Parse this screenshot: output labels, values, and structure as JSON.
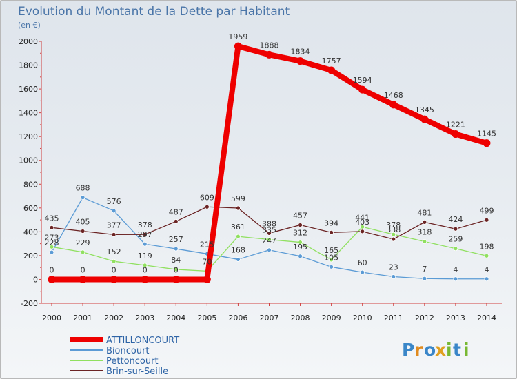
{
  "chart_data": {
    "type": "line",
    "title": "Evolution du Montant de la Dette par Habitant",
    "subtitle": "(en €)",
    "xlabel": "",
    "ylabel": "",
    "ylim": [
      -200,
      2000
    ],
    "yticks": [
      -200,
      0,
      200,
      400,
      600,
      800,
      1000,
      1200,
      1400,
      1600,
      1800,
      2000
    ],
    "categories": [
      "2000",
      "2001",
      "2002",
      "2003",
      "2004",
      "2005",
      "2006",
      "2007",
      "2008",
      "2009",
      "2010",
      "2011",
      "2012",
      "2013",
      "2014"
    ],
    "grid": false,
    "legend_position": "bottom-left",
    "series": [
      {
        "name": "ATTILLONCOURT",
        "color": "#ee0000",
        "emphasis": true,
        "values": [
          0,
          0,
          0,
          0,
          0,
          0,
          1959,
          1888,
          1834,
          1757,
          1594,
          1468,
          1345,
          1221,
          1145
        ],
        "labels": [
          "0",
          "0",
          "0",
          "0",
          "0",
          "",
          "1959",
          "1888",
          "1834",
          "1757",
          "1594",
          "1468",
          "1345",
          "1221",
          "1145"
        ]
      },
      {
        "name": "Bioncourt",
        "color": "#5b9bd5",
        "emphasis": false,
        "values": [
          228,
          688,
          576,
          297,
          257,
          215,
          168,
          247,
          195,
          105,
          60,
          23,
          7,
          4,
          4
        ],
        "labels": [
          "228",
          "688",
          "576",
          "297",
          "257",
          "215",
          "168",
          "247",
          "195",
          "105",
          "60",
          "23",
          "7",
          "4",
          "4"
        ]
      },
      {
        "name": "Pettoncourt",
        "color": "#90e060",
        "emphasis": false,
        "values": [
          273,
          229,
          152,
          119,
          84,
          70,
          361,
          335,
          312,
          165,
          441,
          378,
          318,
          259,
          198
        ],
        "labels": [
          "273",
          "229",
          "152",
          "119",
          "84",
          "70",
          "361",
          "335",
          "312",
          "165",
          "441",
          "378",
          "318",
          "259",
          "198"
        ]
      },
      {
        "name": "Brin-sur-Seille",
        "color": "#6b2424",
        "emphasis": false,
        "values": [
          435,
          405,
          377,
          378,
          487,
          609,
          599,
          388,
          457,
          394,
          403,
          338,
          481,
          424,
          499
        ],
        "labels": [
          "435",
          "405",
          "377",
          "378",
          "487",
          "609",
          "599",
          "388",
          "457",
          "394",
          "403",
          "338",
          "481",
          "424",
          "499"
        ]
      }
    ]
  },
  "logo": {
    "text": "Proxiti",
    "letters": [
      "P",
      "r",
      "o",
      "x",
      "i",
      "t",
      "i"
    ]
  }
}
